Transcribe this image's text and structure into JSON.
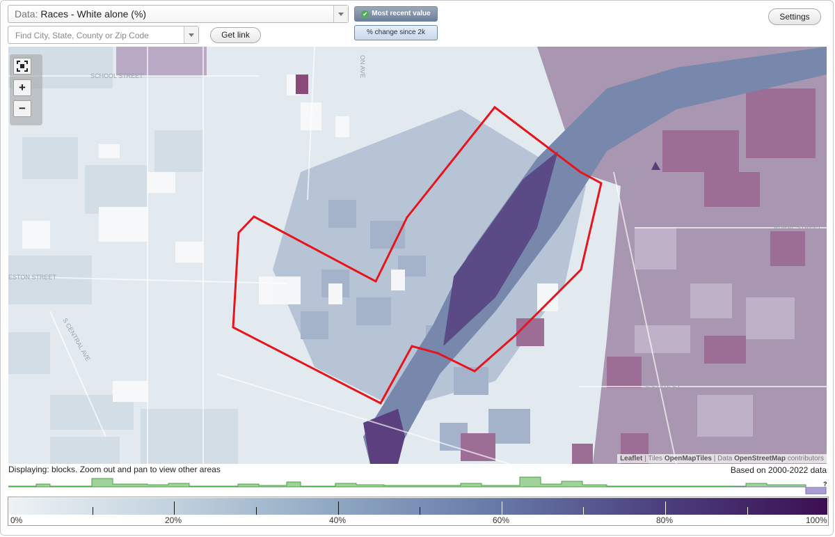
{
  "data_select": {
    "prefix": "Data:",
    "value": "Races - White alone (%)"
  },
  "search": {
    "placeholder": "Find City, State, County or Zip Code"
  },
  "buttons": {
    "get_link": "Get link",
    "settings": "Settings"
  },
  "value_mode": {
    "active": "Most recent value",
    "inactive": "% change since 2k"
  },
  "map": {
    "street_labels": [
      "SCHOOL STREET",
      "ESTON STREET",
      "S CENTRAL AVE",
      "RURAL STREET",
      "E STATE ST",
      "N 2ND ST",
      "ON AVE"
    ],
    "zoom_in": "+",
    "zoom_out": "−",
    "selection_outline_color": "#e8141b"
  },
  "attribution": {
    "leaflet": "Leaflet",
    "sep": " | ",
    "tiles_prefix": "Tiles ",
    "tiles": "OpenMapTiles",
    "data_prefix": " | Data ",
    "osm": "OpenStreetMap",
    "contrib": " contributors"
  },
  "status": "Displaying: blocks. Zoom out and pan to view other areas",
  "based_on": "Based on 2000-2022 data",
  "legend": {
    "labels": [
      "0%",
      "20%",
      "40%",
      "60%",
      "80%",
      "100%"
    ],
    "colors": [
      "#eef2f5",
      "#c2d2de",
      "#8ea7c2",
      "#6678a6",
      "#4b3f7d",
      "#3b0f52"
    ]
  },
  "histogram_marker": "?"
}
